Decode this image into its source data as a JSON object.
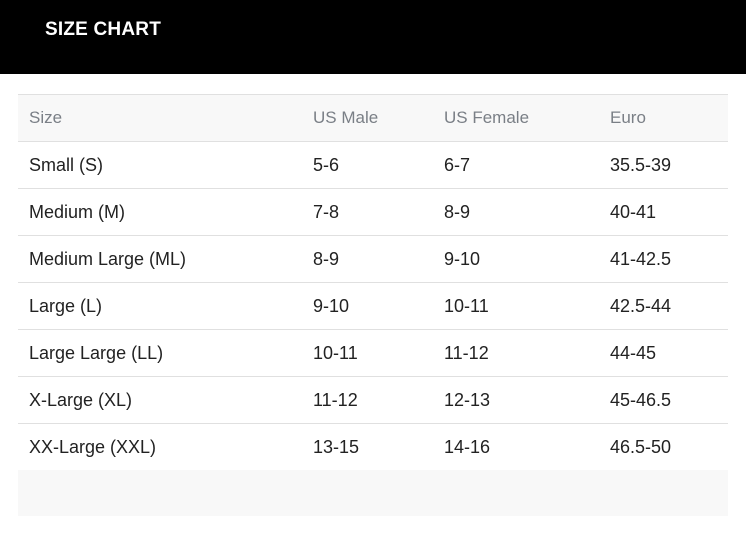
{
  "header": {
    "title": "SIZE CHART",
    "background": "#000000"
  },
  "table": {
    "columns": [
      "Size",
      "US Male",
      "US Female",
      "Euro"
    ],
    "rows": [
      [
        "Small (S)",
        "5-6",
        "6-7",
        "35.5-39"
      ],
      [
        "Medium (M)",
        "7-8",
        "8-9",
        "40-41"
      ],
      [
        "Medium Large (ML)",
        "8-9",
        "9-10",
        "41-42.5"
      ],
      [
        "Large (L)",
        "9-10",
        "10-11",
        "42.5-44"
      ],
      [
        "Large Large (LL)",
        "10-11",
        "11-12",
        "44-45"
      ],
      [
        "X-Large (XL)",
        "11-12",
        "12-13",
        "45-46.5"
      ],
      [
        "XX-Large (XXL)",
        "13-15",
        "14-16",
        "46.5-50"
      ]
    ]
  }
}
